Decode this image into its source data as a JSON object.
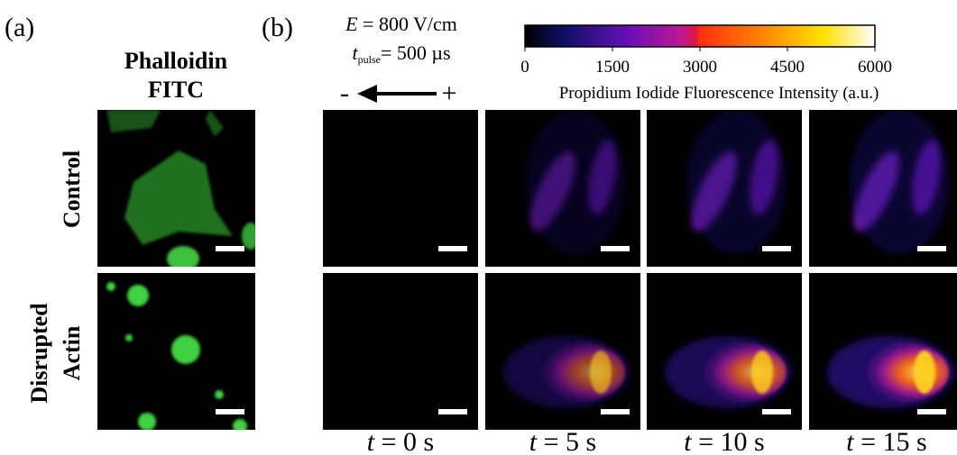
{
  "panel_a": {
    "label": "(a)",
    "stain": [
      "Phalloidin",
      "FITC"
    ],
    "rows": [
      "Control",
      "Disrupted",
      "Actin"
    ]
  },
  "panel_b": {
    "label": "(b)",
    "field": {
      "symbol": "E",
      "text": "= 800 V/cm"
    },
    "pulse": {
      "symbol": "t",
      "subscript": "pulse",
      "text": "= 500 µs"
    },
    "polarity": {
      "minus": "-",
      "plus": "+"
    },
    "colorbar": {
      "lim": [
        0,
        6000
      ],
      "ticks": [
        0,
        1500,
        3000,
        4500,
        6000
      ],
      "label": "Propidium Iodide Fluorescence Intensity (a.u.)"
    },
    "times": [
      {
        "symbol": "t",
        "text": "= 0 s"
      },
      {
        "symbol": "t",
        "text": "= 5 s"
      },
      {
        "symbol": "t",
        "text": "= 10 s"
      },
      {
        "symbol": "t",
        "text": "= 15 s"
      }
    ]
  }
}
